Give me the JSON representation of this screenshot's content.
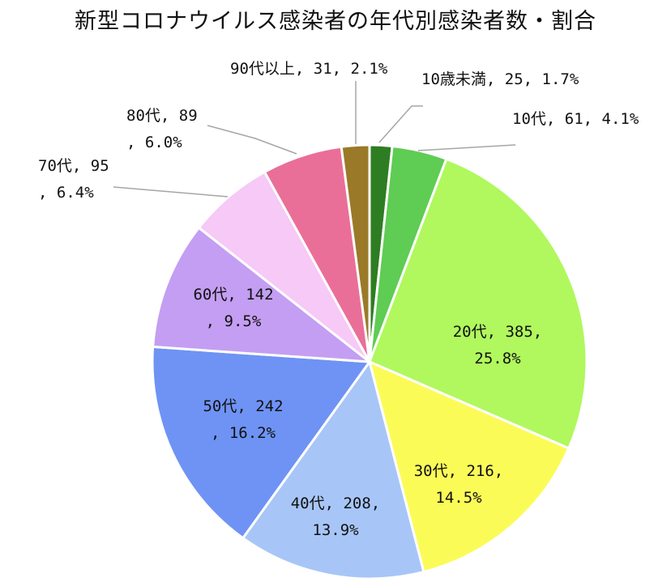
{
  "chart_data": {
    "type": "pie",
    "title": "新型コロナウイルス感染者の年代別感染者数・割合",
    "slices": [
      {
        "label": "10歳未満",
        "value": 25,
        "percent": "1.7%",
        "color": "#2e7d22"
      },
      {
        "label": "10代",
        "value": 61,
        "percent": "4.1%",
        "color": "#5fcc54"
      },
      {
        "label": "20代",
        "value": 385,
        "percent": "25.8%",
        "color": "#b0f85e"
      },
      {
        "label": "30代",
        "value": 216,
        "percent": "14.5%",
        "color": "#fbfb58"
      },
      {
        "label": "40代",
        "value": 208,
        "percent": "13.9%",
        "color": "#a7c6f7"
      },
      {
        "label": "50代",
        "value": 242,
        "percent": "16.2%",
        "color": "#6e93f5"
      },
      {
        "label": "60代",
        "value": 142,
        "percent": "9.5%",
        "color": "#c49ef2"
      },
      {
        "label": "70代",
        "value": 95,
        "percent": "6.4%",
        "color": "#f6c9f6"
      },
      {
        "label": "80代",
        "value": 89,
        "percent": "6.0%",
        "color": "#ea6f98"
      },
      {
        "label": "90代以上",
        "value": 31,
        "percent": "2.1%",
        "color": "#9a7a28"
      }
    ],
    "label_lines": [
      [
        "10歳未満, 25, 1.7%"
      ],
      [
        "10代, 61, 4.1%"
      ],
      [
        "20代, 385,",
        "25.8%"
      ],
      [
        "30代, 216,",
        "14.5%"
      ],
      [
        "40代, 208,",
        "13.9%"
      ],
      [
        "50代, 242",
        ", 16.2%"
      ],
      [
        "60代, 142",
        ", 9.5%"
      ],
      [
        "70代, 95",
        ", 6.4%"
      ],
      [
        "80代, 89",
        ", 6.0%"
      ],
      [
        "90代以上, 31, 2.1%"
      ]
    ]
  }
}
